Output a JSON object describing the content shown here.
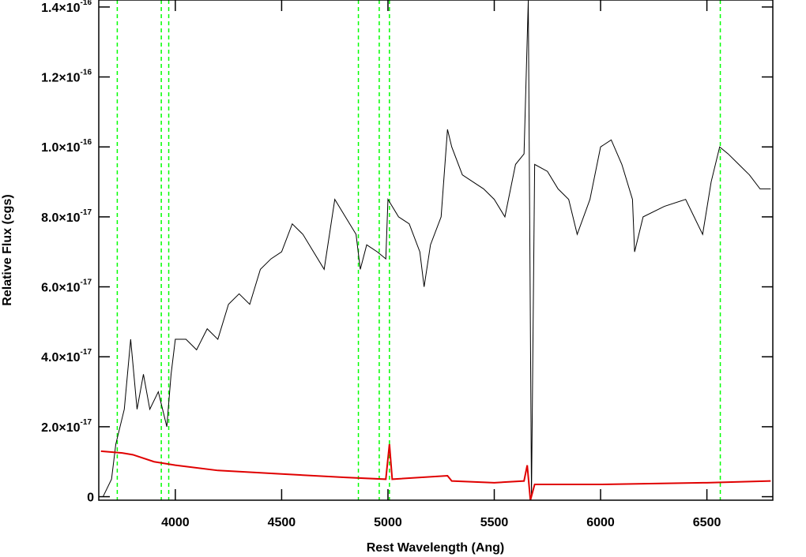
{
  "chart_data": {
    "type": "line",
    "x_label": "Rest Wavelength (Ang)",
    "y_label": "Relative Flux (cgs)",
    "xlim": [
      3640,
      6810
    ],
    "ylim": [
      -1e-18,
      1.42e-16
    ],
    "xticks": [
      4000,
      4500,
      5000,
      5500,
      6000,
      6500
    ],
    "yticks": [
      0,
      {
        "value": 2e-17,
        "label": "2.0×10",
        "exponent": "-17"
      },
      {
        "value": 4e-17,
        "label": "4.0×10",
        "exponent": "-17"
      },
      {
        "value": 6e-17,
        "label": "6.0×10",
        "exponent": "-17"
      },
      {
        "value": 8e-17,
        "label": "8.0×10",
        "exponent": "-17"
      },
      {
        "value": 1e-16,
        "label": "1.0×10",
        "exponent": "-16"
      },
      {
        "value": 1.2e-16,
        "label": "1.2×10",
        "exponent": "-16"
      },
      {
        "value": 1.4e-16,
        "label": "1.4×10",
        "exponent": "-16"
      }
    ],
    "reference_lines": {
      "color": "#00ff00",
      "x": [
        3727,
        3934,
        3969,
        4861,
        4959,
        5007,
        6563
      ]
    },
    "series": [
      {
        "color": "#000000",
        "x": [
          3660,
          3700,
          3720,
          3760,
          3790,
          3820,
          3850,
          3880,
          3920,
          3960,
          3980,
          4000,
          4050,
          4100,
          4150,
          4200,
          4250,
          4300,
          4350,
          4400,
          4450,
          4500,
          4550,
          4600,
          4650,
          4700,
          4750,
          4800,
          4850,
          4870,
          4900,
          4950,
          4990,
          5000,
          5050,
          5100,
          5150,
          5170,
          5200,
          5250,
          5280,
          5300,
          5350,
          5400,
          5450,
          5500,
          5550,
          5600,
          5640,
          5660,
          5675,
          5690,
          5750,
          5800,
          5850,
          5890,
          5950,
          6000,
          6050,
          6100,
          6150,
          6160,
          6200,
          6300,
          6400,
          6480,
          6520,
          6560,
          6600,
          6650,
          6700,
          6750,
          6800
        ],
        "values": [
          0,
          5e-18,
          1.5e-17,
          2.5e-17,
          4.5e-17,
          2.5e-17,
          3.5e-17,
          2.5e-17,
          3e-17,
          2e-17,
          3.5e-17,
          4.5e-17,
          4.5e-17,
          4.2e-17,
          4.8e-17,
          4.5e-17,
          5.5e-17,
          5.8e-17,
          5.5e-17,
          6.5e-17,
          6.8e-17,
          7e-17,
          7.8e-17,
          7.5e-17,
          7e-17,
          6.5e-17,
          8.5e-17,
          8e-17,
          7.5e-17,
          6.5e-17,
          7.2e-17,
          7e-17,
          6.8e-17,
          8.5e-17,
          8e-17,
          7.8e-17,
          7e-17,
          6e-17,
          7.2e-17,
          8e-17,
          1.05e-16,
          1e-16,
          9.2e-17,
          9e-17,
          8.8e-17,
          8.5e-17,
          8e-17,
          9.5e-17,
          9.8e-17,
          1.42e-16,
          0,
          9.5e-17,
          9.3e-17,
          8.8e-17,
          8.5e-17,
          7.5e-17,
          8.5e-17,
          1e-16,
          1.02e-16,
          9.5e-17,
          8.5e-17,
          7e-17,
          8e-17,
          8.3e-17,
          8.5e-17,
          7.5e-17,
          9e-17,
          1e-16,
          9.8e-17,
          9.5e-17,
          9.2e-17,
          8.8e-17,
          8.8e-17
        ]
      },
      {
        "color": "#e00000",
        "x": [
          3650,
          3750,
          3800,
          3900,
          4000,
          4200,
          4500,
          4800,
          4990,
          5007,
          5020,
          5280,
          5300,
          5500,
          5640,
          5655,
          5670,
          5690,
          6000,
          6500,
          6800
        ],
        "values": [
          1.3e-17,
          1.25e-17,
          1.2e-17,
          1e-17,
          9e-18,
          7.5e-18,
          6.5e-18,
          5.5e-18,
          5e-18,
          1.5e-17,
          5e-18,
          6e-18,
          4.5e-18,
          4e-18,
          4.5e-18,
          9e-18,
          -1e-18,
          3.5e-18,
          3.5e-18,
          4e-18,
          4.5e-18
        ]
      }
    ]
  }
}
